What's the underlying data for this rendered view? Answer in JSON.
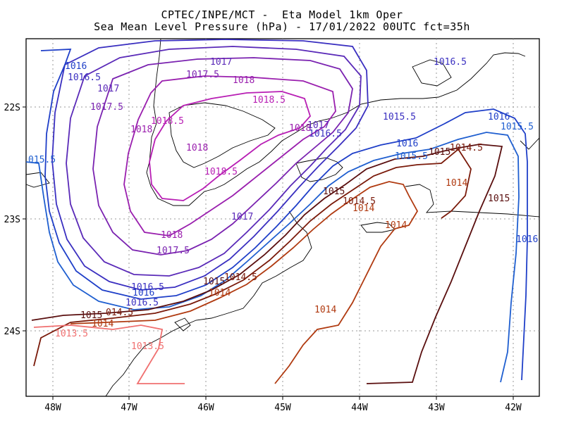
{
  "title_line1": "CPTEC/INPE/MCT -  Eta Model 1km Oper",
  "title_line2": "Sea Mean Level Pressure (hPa) - 17/01/2022 00UTC fct=35h",
  "axes": {
    "lon_ticks": [
      "48W",
      "47W",
      "46W",
      "45W",
      "44W",
      "43W",
      "42W"
    ],
    "lat_ticks": [
      "22S",
      "23S",
      "24S"
    ]
  },
  "contour_labels": [
    {
      "text": "1016",
      "color": "#1f3fc8"
    },
    {
      "text": "1016.5",
      "color": "#3a2fc0"
    },
    {
      "text": "1017",
      "color": "#5a2ab8"
    },
    {
      "text": "1017.5",
      "color": "#7a22b0"
    },
    {
      "text": "1018",
      "color": "#9a1fae"
    },
    {
      "text": "1018.5",
      "color": "#b81eb4"
    },
    {
      "text": "1018",
      "color": "#9a1fae"
    },
    {
      "text": "1018.5",
      "color": "#b81eb4"
    },
    {
      "text": "1018",
      "color": "#9a1fae"
    },
    {
      "text": "1017.5",
      "color": "#7a22b0"
    },
    {
      "text": "1018",
      "color": "#9a1fae"
    },
    {
      "text": "1018.5",
      "color": "#b81eb4"
    },
    {
      "text": "1017",
      "color": "#5a2ab8"
    },
    {
      "text": "1016.5",
      "color": "#3a2fc0"
    },
    {
      "text": "1016.5",
      "color": "#3a2fc0"
    },
    {
      "text": "015.5",
      "color": "#1f5fd0"
    },
    {
      "text": "1018",
      "color": "#9a1fae"
    },
    {
      "text": "1017.5",
      "color": "#7a22b0"
    },
    {
      "text": "1017",
      "color": "#5a2ab8"
    },
    {
      "text": "1017",
      "color": "#5a2ab8"
    },
    {
      "text": "1016.5",
      "color": "#3a2fc0"
    },
    {
      "text": "1016",
      "color": "#1f3fc8"
    },
    {
      "text": "1015.5",
      "color": "#1f5fd0"
    },
    {
      "text": "1015",
      "color": "#5a0f0f"
    },
    {
      "text": "014.5",
      "color": "#7a1a0a"
    },
    {
      "text": "1014",
      "color": "#b03a10"
    },
    {
      "text": "1013.5",
      "color": "#f07070"
    },
    {
      "text": "1013.5",
      "color": "#f07070"
    },
    {
      "text": "1016.5",
      "color": "#3a2fc0"
    },
    {
      "text": "1016",
      "color": "#1f3fc8"
    },
    {
      "text": "1016",
      "color": "#1f3fc8"
    },
    {
      "text": "1015.5",
      "color": "#1f5fd0"
    },
    {
      "text": "1015.5",
      "color": "#1f5fd0"
    },
    {
      "text": "1015",
      "color": "#5a0f0f"
    },
    {
      "text": "1014.5",
      "color": "#7a1a0a"
    },
    {
      "text": "1014",
      "color": "#b03a10"
    },
    {
      "text": "1015",
      "color": "#5a0f0f"
    },
    {
      "text": "1016",
      "color": "#1f3fc8"
    },
    {
      "text": "1015",
      "color": "#5a0f0f"
    },
    {
      "text": "1014.5",
      "color": "#7a1a0a"
    },
    {
      "text": "1014",
      "color": "#b03a10"
    },
    {
      "text": "1014",
      "color": "#b03a10"
    },
    {
      "text": "1015",
      "color": "#5a0f0f"
    },
    {
      "text": "1014.5",
      "color": "#7a1a0a"
    },
    {
      "text": "1014",
      "color": "#b03a10"
    },
    {
      "text": "1014",
      "color": "#b03a10"
    }
  ]
}
